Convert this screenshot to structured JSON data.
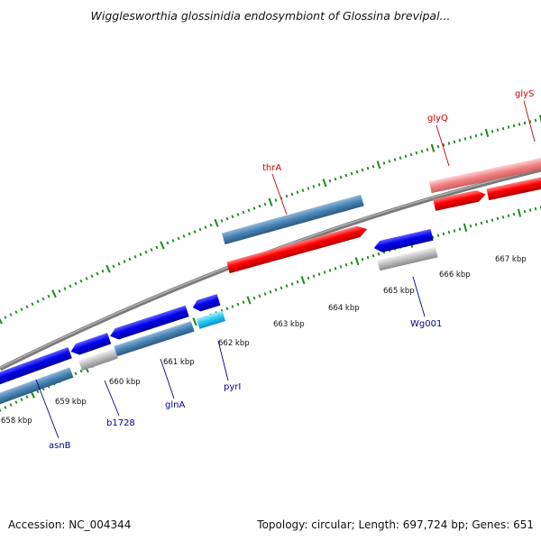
{
  "title": "Wigglesworthia glossinidia endosymbiont of Glossina brevipal...",
  "footer": {
    "accession": "Accession: NC_004344",
    "summary": "Topology: circular; Length: 697,724 bp; Genes: 651"
  },
  "colors": {
    "backbone": "#7a7a7a",
    "tick": "#1a8a1a",
    "forward_feature": "#ff0000",
    "forward_light": "#f08080",
    "reverse_feature": "#0000ee",
    "steelblue": "#4682b4",
    "gray_feature": "#bcbcbc",
    "cyan_feature": "#20c8f0",
    "label_forward": "#cc0000",
    "label_reverse": "#00008b"
  },
  "kbp_ticks": [
    "658 kbp",
    "659 kbp",
    "660 kbp",
    "661 kbp",
    "662 kbp",
    "663 kbp",
    "664 kbp",
    "665 kbp",
    "666 kbp",
    "667 kbp"
  ],
  "gene_labels": [
    {
      "text": "thrA",
      "strand": "forward"
    },
    {
      "text": "glyQ",
      "strand": "forward"
    },
    {
      "text": "glyS",
      "strand": "forward"
    },
    {
      "text": "asnB",
      "strand": "reverse"
    },
    {
      "text": "b1728",
      "strand": "reverse"
    },
    {
      "text": "glnA",
      "strand": "reverse"
    },
    {
      "text": "pyrI",
      "strand": "reverse"
    },
    {
      "text": "Wg001",
      "strand": "reverse"
    }
  ]
}
